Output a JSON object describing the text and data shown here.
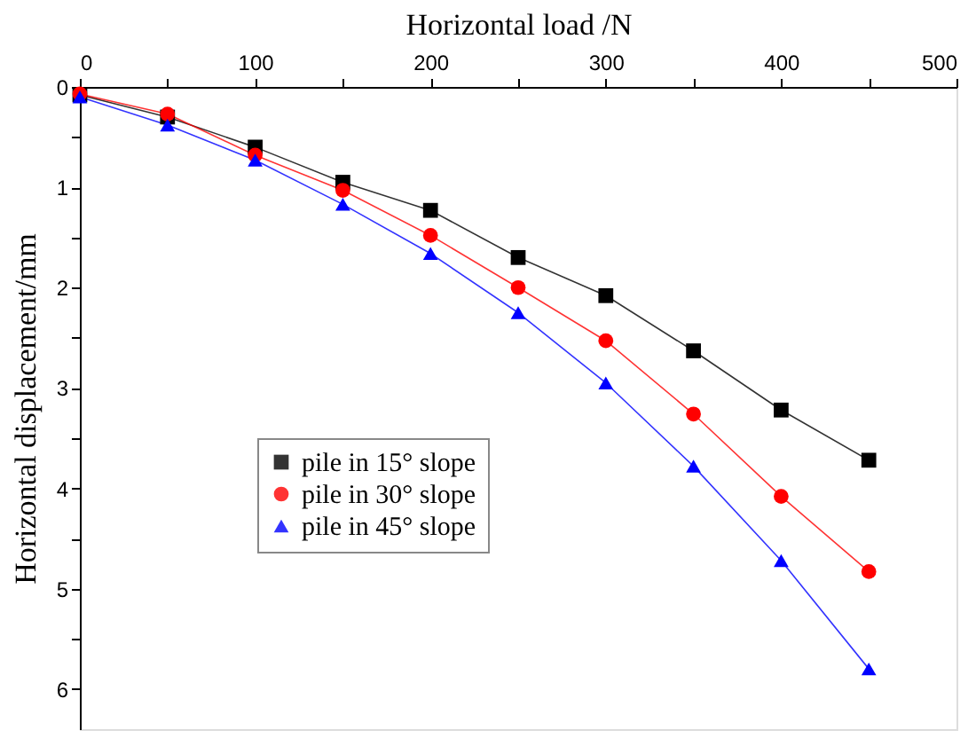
{
  "chart_data": {
    "type": "line",
    "xlabel": "Horizontal load /N",
    "ylabel": "Horizontal displacement/mm",
    "x": [
      0,
      50,
      100,
      150,
      200,
      250,
      300,
      350,
      400,
      450
    ],
    "series": [
      {
        "name": "pile in 15° slope",
        "color": "#000000",
        "marker": "square",
        "values": [
          0.08,
          0.3,
          0.6,
          0.95,
          1.23,
          1.7,
          2.08,
          2.63,
          3.22,
          3.72
        ]
      },
      {
        "name": "pile in 30° slope",
        "color": "#ff0000",
        "marker": "circle",
        "values": [
          0.07,
          0.27,
          0.68,
          1.03,
          1.48,
          2.0,
          2.53,
          3.26,
          4.08,
          4.83
        ]
      },
      {
        "name": "pile in 45° slope",
        "color": "#0000ff",
        "marker": "triangle",
        "values": [
          0.1,
          0.38,
          0.73,
          1.17,
          1.66,
          2.25,
          2.95,
          3.78,
          4.72,
          5.8
        ]
      }
    ],
    "xlim": [
      0,
      500
    ],
    "xticks": [
      0,
      {
        "value": 50,
        "label": null
      },
      100,
      {
        "value": 150,
        "label": null
      },
      200,
      {
        "value": 250,
        "label": null
      },
      300,
      {
        "value": 350,
        "label": null
      },
      400,
      {
        "value": 450,
        "label": null
      },
      500
    ],
    "ylim": [
      6.4,
      0
    ],
    "yticks": [
      0,
      {
        "value": 0.5,
        "label": null
      },
      1,
      {
        "value": 1.5,
        "label": null
      },
      2,
      {
        "value": 2.5,
        "label": null
      },
      3,
      {
        "value": 3.5,
        "label": null
      },
      4,
      {
        "value": 4.5,
        "label": null
      },
      5,
      {
        "value": 5.5,
        "label": null
      },
      6
    ],
    "grid": false,
    "legend": "bottom left",
    "line_style": "solid"
  }
}
